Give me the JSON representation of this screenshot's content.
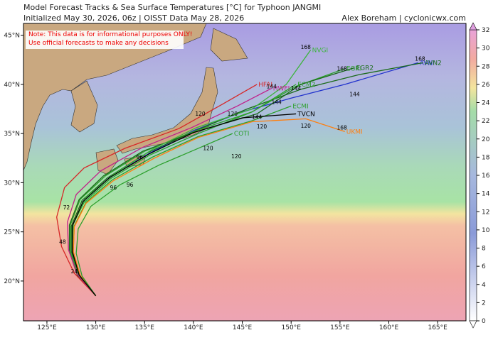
{
  "header": {
    "title": "Model Forecast Tracks & Sea Surface Temperatures [°C] for Typhoon JANGMI",
    "subtitle": "Initialized May 30, 2026, 06z | OISST Data May 28, 2026",
    "credit": "Alex Boreham | cyclonicwx.com"
  },
  "note": [
    "Note: This data is for informational purposes ONLY!",
    "Use official forecasts to make any decisions"
  ],
  "map": {
    "xlim": [
      122.6,
      167.9
    ],
    "ylim": [
      15.95,
      46.2
    ],
    "xticks": [
      {
        "value": 125,
        "label": "125°E"
      },
      {
        "value": 130,
        "label": "130°E"
      },
      {
        "value": 135,
        "label": "135°E"
      },
      {
        "value": 140,
        "label": "140°E"
      },
      {
        "value": 145,
        "label": "145°E"
      },
      {
        "value": 150,
        "label": "150°E"
      },
      {
        "value": 155,
        "label": "155°E"
      },
      {
        "value": 160,
        "label": "160°E"
      },
      {
        "value": 165,
        "label": "165°E"
      }
    ],
    "yticks": [
      {
        "value": 20,
        "label": "20°N"
      },
      {
        "value": 25,
        "label": "25°N"
      },
      {
        "value": 30,
        "label": "30°N"
      },
      {
        "value": 35,
        "label": "35°N"
      },
      {
        "value": 40,
        "label": "40°N"
      },
      {
        "value": 45,
        "label": "45°N"
      }
    ],
    "tracks": [
      {
        "name": "AVNI",
        "color": "#2233cc",
        "lon": [
          130,
          128.4,
          127.6,
          127.6,
          128.8,
          131.5,
          135.5,
          140,
          145,
          150,
          155.5,
          163
        ],
        "lat": [
          18.5,
          20.6,
          23,
          25.6,
          28.2,
          30.6,
          33,
          35.3,
          37.2,
          38.6,
          40,
          42.2
        ]
      },
      {
        "name": "AVN2",
        "color": "#1a6b1a",
        "lon": [
          130,
          128.3,
          127.5,
          127.5,
          128.6,
          131.2,
          135.2,
          140,
          145.5,
          151,
          157,
          163.5
        ],
        "lat": [
          18.5,
          20.6,
          23,
          25.6,
          28.2,
          30.5,
          33,
          35.2,
          37.5,
          39.5,
          41,
          42.2
        ]
      },
      {
        "name": "EGRI",
        "color": "#2ca02c",
        "lon": [
          130,
          128.2,
          127.4,
          127.4,
          128.4,
          131,
          135,
          140,
          146,
          150.5,
          155.5
        ],
        "lat": [
          18.5,
          20.6,
          23,
          25.7,
          28.3,
          30.7,
          33.2,
          35.2,
          37.2,
          39.8,
          41.6
        ]
      },
      {
        "name": "EGR2",
        "color": "#1a6b1a",
        "lon": [
          130,
          128.1,
          127.3,
          127.3,
          128.3,
          130.8,
          134.8,
          140,
          146.5,
          151,
          156.5
        ],
        "lat": [
          18.5,
          20.6,
          23,
          25.7,
          28.3,
          30.7,
          33.2,
          35.1,
          37,
          40,
          41.7
        ]
      },
      {
        "name": "NVGI",
        "color": "#3cb43c",
        "lon": [
          130,
          128.3,
          127.6,
          127.7,
          129,
          131.8,
          135.8,
          140.3,
          146,
          149.5,
          152
        ],
        "lat": [
          18.5,
          20.7,
          23.2,
          25.8,
          28.5,
          30.8,
          33.4,
          35.6,
          37.5,
          40,
          43.5
        ]
      },
      {
        "name": "HFAI",
        "color": "#d62728",
        "lon": [
          130,
          127.8,
          126.5,
          126,
          126.8,
          128.8,
          133,
          138.5,
          143,
          146.5
        ],
        "lat": [
          18.5,
          20.8,
          23.5,
          26.5,
          29.5,
          31.5,
          33.5,
          35.5,
          38,
          40
        ]
      },
      {
        "name": "HWFI",
        "color": "#c0208a",
        "lon": [
          130,
          128.1,
          127.2,
          127.1,
          128,
          130.5,
          134.8,
          139.8,
          144.5,
          148
        ],
        "lat": [
          18.5,
          20.7,
          23.2,
          26,
          28.8,
          31.2,
          33.6,
          35.6,
          37.8,
          39.6
        ]
      },
      {
        "name": "ECM2",
        "color": "#2ca02c",
        "lon": [
          130,
          128.3,
          127.6,
          127.6,
          128.8,
          131.5,
          135.5,
          140.5,
          146,
          150.5
        ],
        "lat": [
          18.5,
          20.6,
          23,
          25.6,
          28,
          30.4,
          32.8,
          35,
          37.2,
          40
        ]
      },
      {
        "name": "ECMI",
        "color": "#2ca02c",
        "lon": [
          130,
          128.3,
          127.7,
          127.8,
          129,
          131.7,
          135.8,
          140.5,
          146,
          150
        ],
        "lat": [
          18.5,
          20.6,
          23,
          25.6,
          28,
          30.3,
          32.6,
          34.7,
          36.3,
          37.8
        ]
      },
      {
        "name": "UKMI",
        "color": "#ff7f0e",
        "lon": [
          130,
          128.4,
          127.7,
          127.8,
          129,
          131.8,
          136,
          140.5,
          146,
          151.5,
          155.5
        ],
        "lat": [
          18.5,
          20.6,
          23,
          25.5,
          27.9,
          30.2,
          32.5,
          34.6,
          36.2,
          36.5,
          35.2
        ]
      },
      {
        "name": "COTI",
        "color": "#2ca02c",
        "lon": [
          130,
          128.6,
          128,
          128.2,
          129.5,
          132.5,
          136.5,
          140.5,
          144
        ],
        "lat": [
          18.5,
          20.5,
          22.8,
          25.3,
          27.6,
          29.8,
          31.8,
          33.5,
          35
        ]
      },
      {
        "name": "TVCN",
        "color": "#000000",
        "lon": [
          130,
          128.3,
          127.6,
          127.6,
          128.7,
          131.4,
          135.4,
          140,
          145,
          150.5
        ],
        "lat": [
          18.5,
          20.6,
          23,
          25.6,
          28.1,
          30.5,
          32.9,
          35.1,
          36.6,
          37
        ]
      }
    ],
    "hours": [
      {
        "hour": 168,
        "lon": 163.2,
        "lat": 42.4
      },
      {
        "hour": 168,
        "lon": 155.2,
        "lat": 41.4
      },
      {
        "hour": 168,
        "lon": 151.5,
        "lat": 43.6
      },
      {
        "hour": 168,
        "lon": 155.2,
        "lat": 35.4
      },
      {
        "hour": 144,
        "lon": 156.5,
        "lat": 38.8
      },
      {
        "hour": 144,
        "lon": 148,
        "lat": 39.6
      },
      {
        "hour": 144,
        "lon": 150.5,
        "lat": 39.4
      },
      {
        "hour": 144,
        "lon": 146.5,
        "lat": 36.5
      },
      {
        "hour": 144,
        "lon": 148.5,
        "lat": 38
      },
      {
        "hour": 120,
        "lon": 140.7,
        "lat": 36.8
      },
      {
        "hour": 120,
        "lon": 144,
        "lat": 36.8
      },
      {
        "hour": 120,
        "lon": 147,
        "lat": 35.5
      },
      {
        "hour": 120,
        "lon": 151.5,
        "lat": 35.6
      },
      {
        "hour": 120,
        "lon": 141.5,
        "lat": 33.3
      },
      {
        "hour": 120,
        "lon": 144.4,
        "lat": 32.5
      },
      {
        "hour": 96,
        "lon": 134.5,
        "lat": 32.4
      },
      {
        "hour": 96,
        "lon": 133.5,
        "lat": 29.6
      },
      {
        "hour": 96,
        "lon": 131.8,
        "lat": 29.3
      },
      {
        "hour": 72,
        "lon": 127,
        "lat": 27.3
      },
      {
        "hour": 48,
        "lon": 126.6,
        "lat": 23.8
      },
      {
        "hour": 24,
        "lon": 127.8,
        "lat": 20.8
      }
    ]
  },
  "colorbar": {
    "lim": [
      0,
      32
    ],
    "ticks": [
      0,
      2,
      4,
      6,
      8,
      10,
      12,
      14,
      16,
      18,
      20,
      22,
      24,
      26,
      28,
      30,
      32
    ]
  }
}
